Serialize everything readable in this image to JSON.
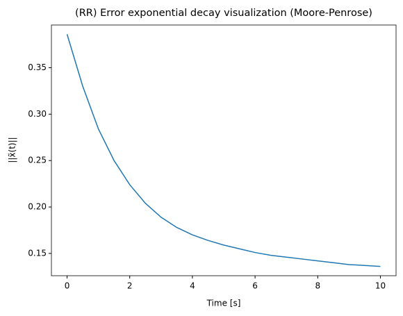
{
  "chart_data": {
    "type": "line",
    "title": "(RR) Error exponential decay visualization (Moore-Penrose)",
    "xlabel": "Time [s]",
    "ylabel": "||x̃(t)||",
    "x": [
      0,
      0.5,
      1,
      1.5,
      2,
      2.5,
      3,
      3.5,
      4,
      4.5,
      5,
      5.5,
      6,
      6.5,
      7,
      7.5,
      8,
      8.5,
      9,
      9.5,
      10
    ],
    "series": [
      {
        "color": "#1f77b4",
        "values": [
          0.386,
          0.33,
          0.284,
          0.25,
          0.224,
          0.204,
          0.189,
          0.178,
          0.17,
          0.164,
          0.159,
          0.155,
          0.151,
          0.148,
          0.146,
          0.144,
          0.142,
          0.14,
          0.138,
          0.137,
          0.136
        ]
      }
    ],
    "xlim": [
      -0.5,
      10.5
    ],
    "ylim": [
      0.126,
      0.396
    ],
    "xticks": [
      0,
      2,
      4,
      6,
      8,
      10
    ],
    "yticks": [
      0.15,
      {
        "value": 0.2,
        "label": "0.20"
      },
      0.25,
      {
        "value": 0.3,
        "label": "0.30"
      },
      0.35
    ]
  }
}
